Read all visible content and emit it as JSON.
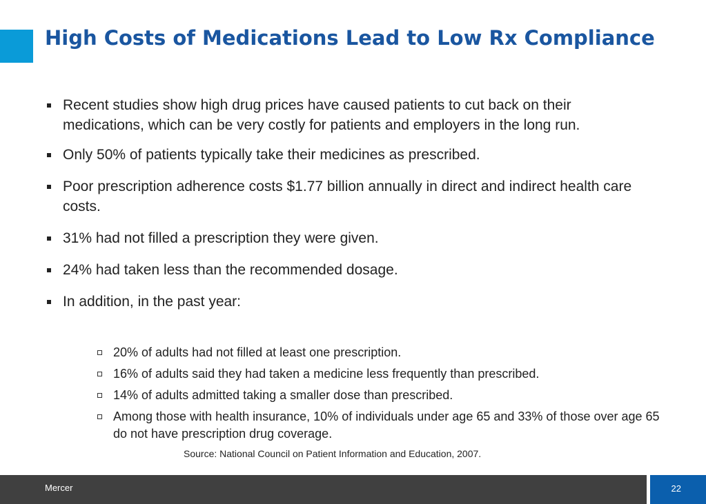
{
  "slide": {
    "title": "High Costs of Medications Lead to Low Rx Compliance",
    "bullets": [
      "Recent studies show high drug prices have caused patients to cut back on their medications, which can be very costly for patients and employers in the long run.",
      " Only 50% of patients typically take their medicines as prescribed.",
      " Poor prescription adherence costs $1.77 billion annually in direct and indirect health care costs.",
      " 31% had not filled a prescription they were given.",
      " 24% had taken less than the recommended dosage.",
      " In addition, in the past year:"
    ],
    "sub_bullets": [
      "20% of adults had not filled at least one prescription.",
      "16% of adults said they had taken a medicine less frequently than prescribed.",
      "14% of adults admitted taking a smaller dose than prescribed.",
      "Among those with health insurance, 10% of individuals under age 65 and 33% of those over age 65 do not have prescription drug coverage."
    ],
    "source": "Source: National Council on Patient Information and Education, 2007."
  },
  "footer": {
    "brand": "Mercer",
    "page_number": "22"
  },
  "colors": {
    "title": "#1a56a0",
    "accent": "#0a9bd8",
    "footer_bar": "#404040",
    "page_box": "#0b5fad"
  }
}
